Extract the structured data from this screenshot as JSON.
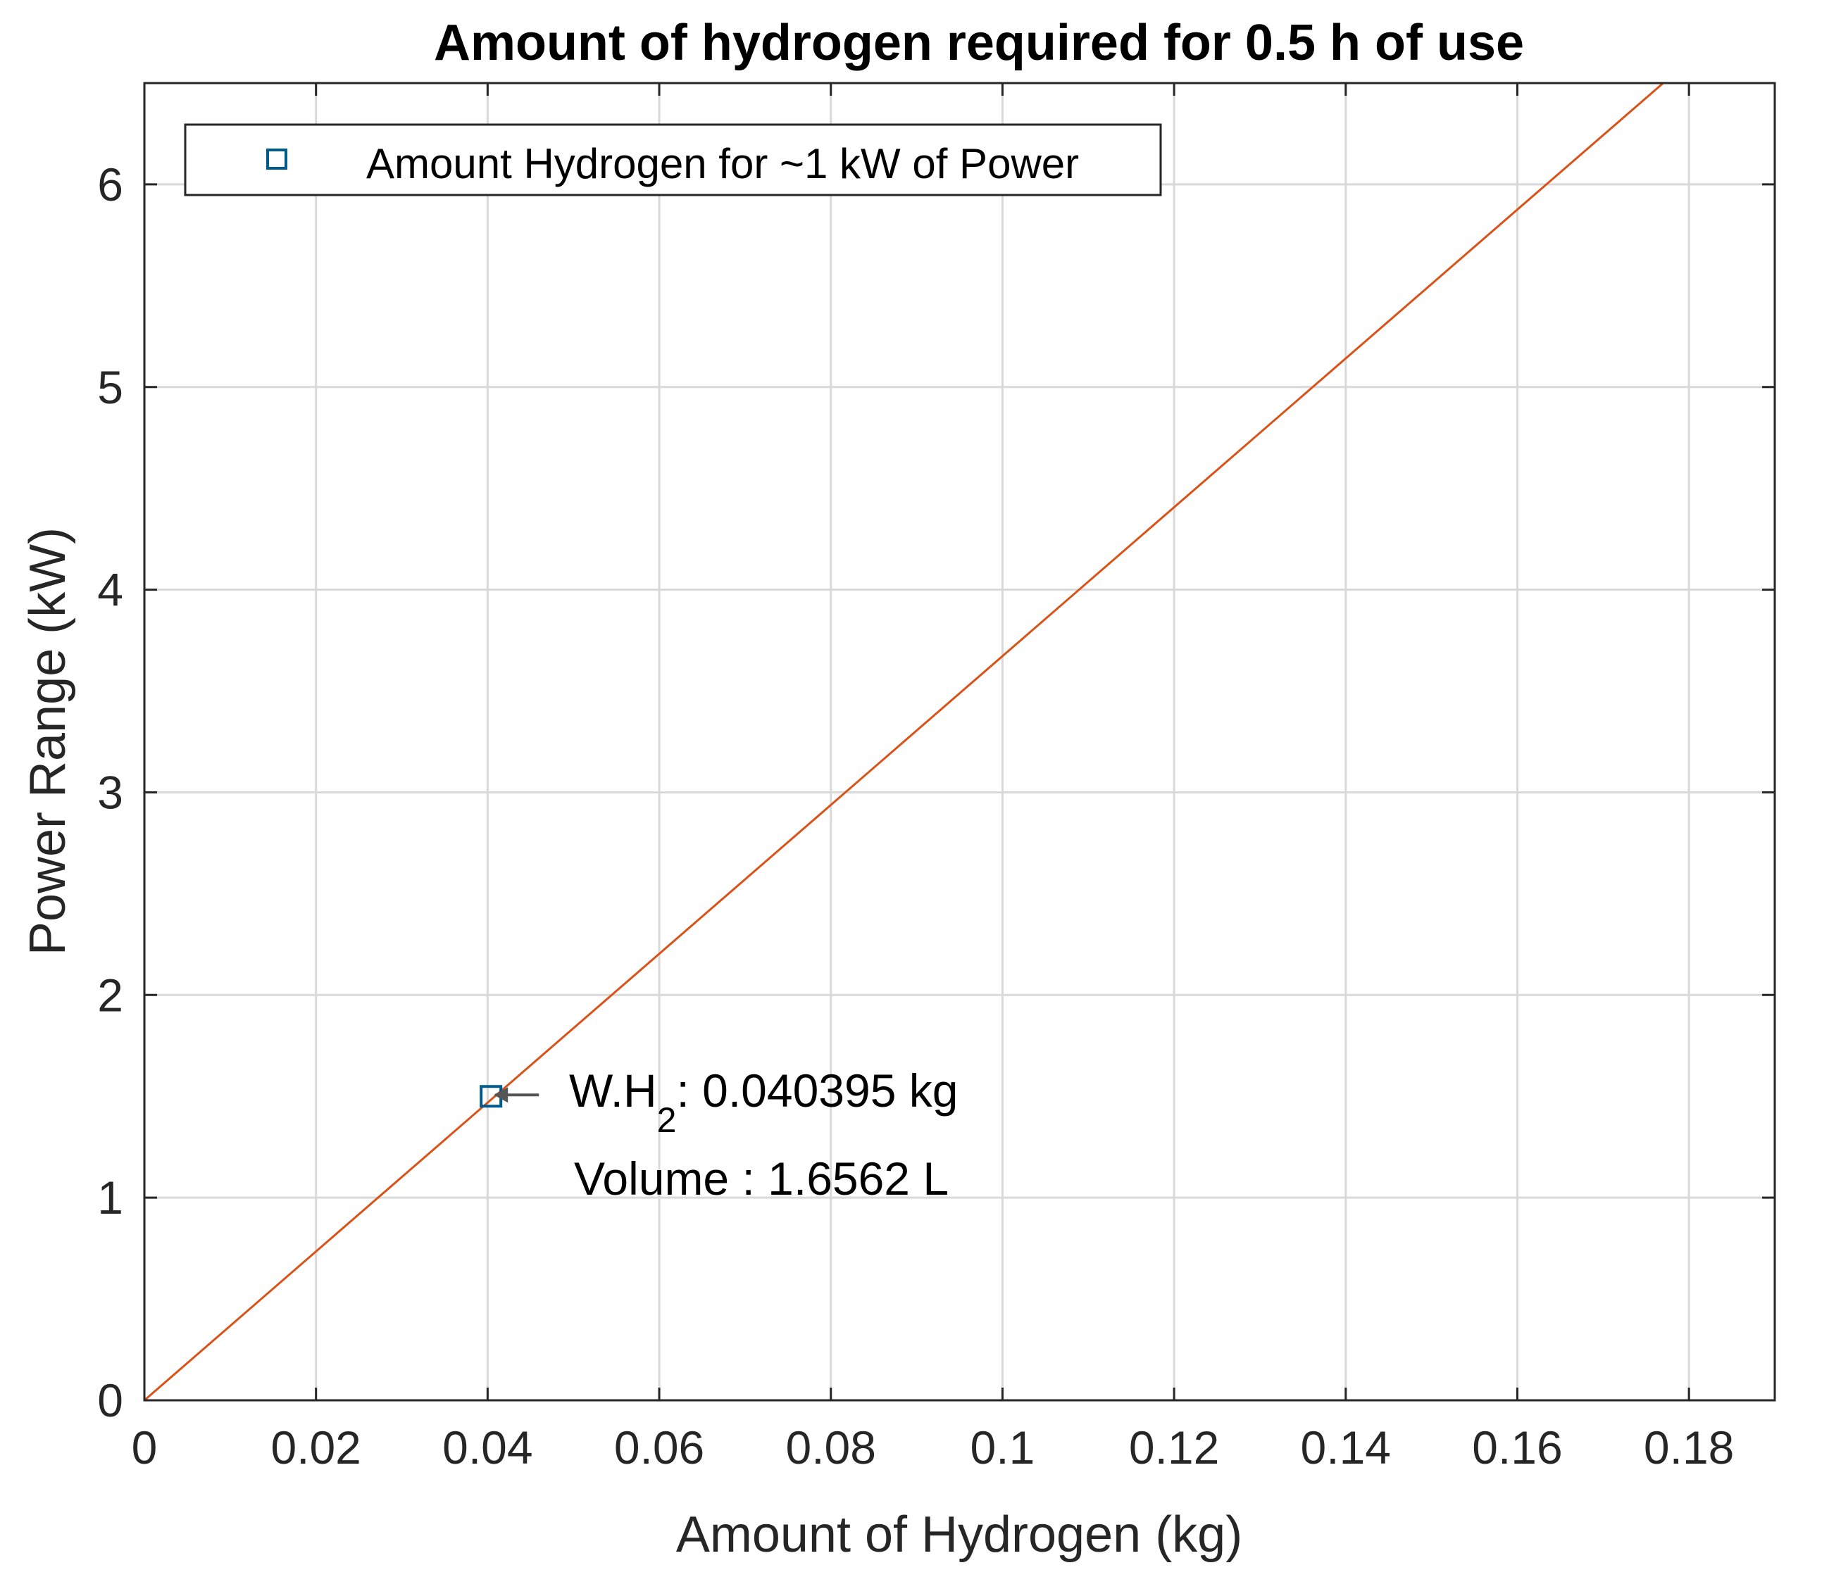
{
  "chart_data": {
    "type": "line",
    "title": "Amount of hydrogen required for 0.5 h of use",
    "xlabel": "Amount of Hydrogen (kg)",
    "ylabel": "Power Range (kW)",
    "xlim": [
      0,
      0.19
    ],
    "ylim": [
      0,
      6.5
    ],
    "x_ticks": [
      "0",
      "0.02",
      "0.04",
      "0.06",
      "0.08",
      "0.1",
      "0.12",
      "0.14",
      "0.16",
      "0.18"
    ],
    "x_tick_values": [
      0,
      0.02,
      0.04,
      0.06,
      0.08,
      0.1,
      0.12,
      0.14,
      0.16,
      0.18
    ],
    "y_ticks": [
      "0",
      "1",
      "2",
      "3",
      "4",
      "5",
      "6"
    ],
    "y_tick_values": [
      0,
      1,
      2,
      3,
      4,
      5,
      6
    ],
    "grid": true,
    "series": [
      {
        "x": [
          0,
          0.177
        ],
        "y": [
          0,
          6.5
        ],
        "color": "#d95319"
      }
    ],
    "legend": {
      "position": "top-left",
      "entries": [
        {
          "label": "Amount Hydrogen for ~1 kW of Power",
          "marker": "square",
          "color": "#005a8c"
        }
      ]
    },
    "highlight_point": {
      "x": 0.040395,
      "y": 1.5,
      "marker": "square",
      "color": "#005a8c"
    },
    "annotation": {
      "line1_prefix": "W.H",
      "line1_subscript": "2",
      "line1_suffix": ": 0.040395 kg",
      "line2": "Volume : 1.6562 L"
    }
  }
}
